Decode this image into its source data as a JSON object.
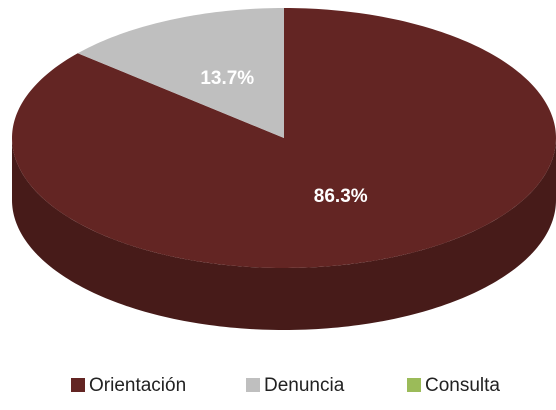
{
  "chart_data": {
    "type": "pie",
    "categories": [
      "Orientación",
      "Denuncia",
      "Consulta"
    ],
    "values": [
      86.3,
      13.7,
      0
    ],
    "value_labels": [
      "86.3%",
      "13.7%",
      null
    ],
    "colors": [
      "#632523",
      "#bfbfbf",
      "#9bbb59"
    ],
    "legend": "bottom"
  }
}
